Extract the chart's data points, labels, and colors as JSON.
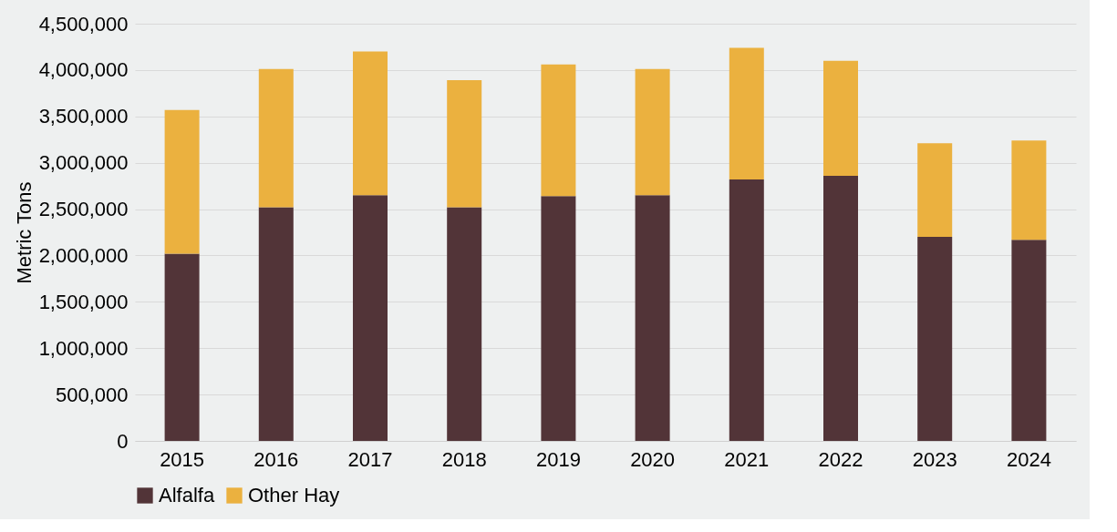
{
  "chart_data": {
    "type": "bar",
    "stacked": true,
    "ylabel": "Metric Tons",
    "categories": [
      "2015",
      "2016",
      "2017",
      "2018",
      "2019",
      "2020",
      "2021",
      "2022",
      "2023",
      "2024"
    ],
    "series": [
      {
        "name": "Alfalfa",
        "color": "#523438",
        "values": [
          2020000,
          2520000,
          2650000,
          2520000,
          2640000,
          2650000,
          2820000,
          2860000,
          2200000,
          2170000
        ]
      },
      {
        "name": "Other Hay",
        "color": "#ebb13f",
        "values": [
          1550000,
          1490000,
          1550000,
          1370000,
          1420000,
          1360000,
          1420000,
          1240000,
          1010000,
          1070000
        ]
      }
    ],
    "ylim": [
      0,
      4500000
    ],
    "yticks": [
      0,
      {
        "value": 500000,
        "label": "500,000"
      },
      {
        "value": 1000000,
        "label": "1,000,000"
      },
      {
        "value": 1500000,
        "label": "1,500,000"
      },
      {
        "value": 2000000,
        "label": "2,000,000"
      },
      {
        "value": 2500000,
        "label": "2,500,000"
      },
      {
        "value": 3000000,
        "label": "3,000,000"
      },
      {
        "value": 3500000,
        "label": "3,500,000"
      },
      {
        "value": 4000000,
        "label": "4,000,000"
      },
      {
        "value": 4500000,
        "label": "4,500,000"
      }
    ],
    "grid": "y",
    "legend": "bottom"
  }
}
